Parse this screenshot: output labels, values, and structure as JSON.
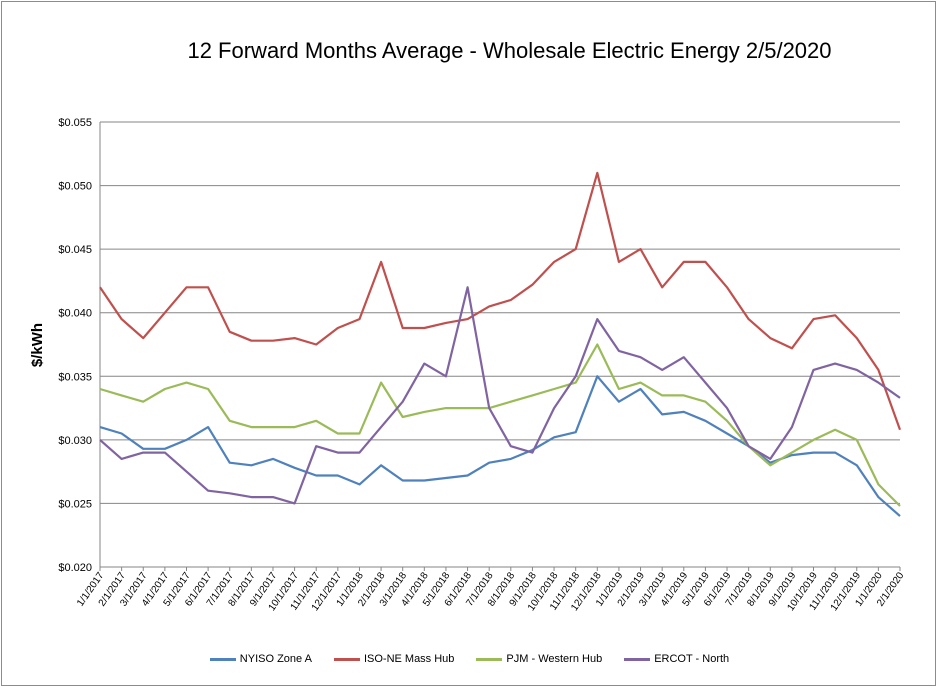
{
  "chart_data": {
    "type": "line",
    "title": "12 Forward Months Average - Wholesale Electric Energy 2/5/2020",
    "xlabel": "",
    "ylabel": "$/kWh",
    "ylim": [
      0.02,
      0.055
    ],
    "yticks": [
      "$0.020",
      "$0.025",
      "$0.030",
      "$0.035",
      "$0.040",
      "$0.045",
      "$0.050",
      "$0.055"
    ],
    "ytick_values": [
      0.02,
      0.025,
      0.03,
      0.035,
      0.04,
      0.045,
      0.05,
      0.055
    ],
    "x": [
      "1/1/2017",
      "2/1/2017",
      "3/1/2017",
      "4/1/2017",
      "5/1/2017",
      "6/1/2017",
      "7/1/2017",
      "8/1/2017",
      "9/1/2017",
      "10/1/2017",
      "11/1/2017",
      "12/1/2017",
      "1/1/2018",
      "2/1/2018",
      "3/1/2018",
      "4/1/2018",
      "5/1/2018",
      "6/1/2018",
      "7/1/2018",
      "8/1/2018",
      "9/1/2018",
      "10/1/2018",
      "11/1/2018",
      "12/1/2018",
      "1/1/2019",
      "2/1/2019",
      "3/1/2019",
      "4/1/2019",
      "5/1/2019",
      "6/1/2019",
      "7/1/2019",
      "8/1/2019",
      "9/1/2019",
      "10/1/2019",
      "11/1/2019",
      "12/1/2019",
      "1/1/2020",
      "2/1/2020"
    ],
    "grid": true,
    "legend_position": "bottom",
    "series": [
      {
        "name": "NYISO Zone A",
        "color": "#4f81bd",
        "values": [
          0.031,
          0.0305,
          0.0293,
          0.0293,
          0.03,
          0.031,
          0.0282,
          0.028,
          0.0285,
          0.0278,
          0.0272,
          0.0272,
          0.0265,
          0.028,
          0.0268,
          0.0268,
          0.027,
          0.0272,
          0.0282,
          0.0285,
          0.0292,
          0.0302,
          0.0306,
          0.035,
          0.033,
          0.034,
          0.032,
          0.0322,
          0.0315,
          0.0305,
          0.0295,
          0.0282,
          0.0288,
          0.029,
          0.029,
          0.028,
          0.0255,
          0.024
        ]
      },
      {
        "name": "ISO-NE Mass Hub",
        "color": "#c0504d",
        "values": [
          0.042,
          0.0395,
          0.038,
          0.04,
          0.042,
          0.042,
          0.0385,
          0.0378,
          0.0378,
          0.038,
          0.0375,
          0.0388,
          0.0395,
          0.044,
          0.0388,
          0.0388,
          0.0392,
          0.0395,
          0.0405,
          0.041,
          0.0422,
          0.044,
          0.045,
          0.051,
          0.044,
          0.045,
          0.042,
          0.044,
          0.044,
          0.042,
          0.0395,
          0.038,
          0.0372,
          0.0395,
          0.0398,
          0.038,
          0.0355,
          0.0308
        ]
      },
      {
        "name": "PJM - Western Hub",
        "color": "#9bbb59",
        "values": [
          0.034,
          0.0335,
          0.033,
          0.034,
          0.0345,
          0.034,
          0.0315,
          0.031,
          0.031,
          0.031,
          0.0315,
          0.0305,
          0.0305,
          0.0345,
          0.0318,
          0.0322,
          0.0325,
          0.0325,
          0.0325,
          0.033,
          0.0335,
          0.034,
          0.0345,
          0.0375,
          0.034,
          0.0345,
          0.0335,
          0.0335,
          0.033,
          0.0315,
          0.0295,
          0.028,
          0.029,
          0.03,
          0.0308,
          0.03,
          0.0265,
          0.0248
        ]
      },
      {
        "name": "ERCOT - North",
        "color": "#8064a2",
        "values": [
          0.03,
          0.0285,
          0.029,
          0.029,
          0.0275,
          0.026,
          0.0258,
          0.0255,
          0.0255,
          0.025,
          0.0295,
          0.029,
          0.029,
          0.031,
          0.033,
          0.036,
          0.035,
          0.042,
          0.0325,
          0.0295,
          0.029,
          0.0325,
          0.035,
          0.0395,
          0.037,
          0.0365,
          0.0355,
          0.0365,
          0.0345,
          0.0325,
          0.0295,
          0.0285,
          0.031,
          0.0355,
          0.036,
          0.0355,
          0.0345,
          0.0333
        ]
      }
    ]
  }
}
